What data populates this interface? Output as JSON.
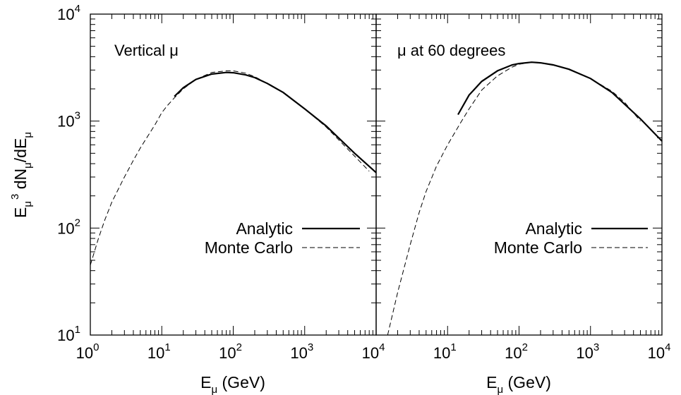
{
  "chart_data": [
    {
      "type": "line",
      "panel_label": "Vertical μ",
      "xlabel": "Eμ (GeV)",
      "ylabel": "Eμ³ dNμ/dEμ",
      "xscale": "log",
      "yscale": "log",
      "xlim": [
        1,
        10000
      ],
      "ylim": [
        10,
        10000
      ],
      "legend_position": "lower-right",
      "series": [
        {
          "name": "Analytic",
          "style": "solid",
          "x": [
            15,
            20,
            30,
            50,
            80,
            100,
            150,
            200,
            300,
            500,
            1000,
            2000,
            5000,
            10000
          ],
          "y": [
            1700,
            2050,
            2450,
            2750,
            2850,
            2830,
            2700,
            2550,
            2250,
            1850,
            1300,
            900,
            500,
            330
          ]
        },
        {
          "name": "Monte Carlo",
          "style": "dashed",
          "x": [
            1,
            1.3,
            1.6,
            2,
            3,
            4,
            5,
            6,
            7,
            8,
            10,
            12,
            15,
            20,
            30,
            50,
            80,
            100,
            150,
            200,
            300,
            500,
            1000,
            2000,
            5000,
            8000
          ],
          "y": [
            45,
            80,
            120,
            175,
            300,
            430,
            560,
            680,
            800,
            920,
            1200,
            1400,
            1650,
            2000,
            2450,
            2850,
            2950,
            2950,
            2800,
            2600,
            2250,
            1850,
            1300,
            880,
            470,
            340
          ]
        }
      ]
    },
    {
      "type": "line",
      "panel_label": "μ at 60 degrees",
      "xlabel": "Eμ (GeV)",
      "xscale": "log",
      "yscale": "log",
      "xlim": [
        1,
        10000
      ],
      "ylim": [
        10,
        10000
      ],
      "legend_position": "lower-right",
      "series": [
        {
          "name": "Analytic",
          "style": "solid",
          "x": [
            14,
            20,
            30,
            50,
            80,
            100,
            150,
            200,
            300,
            500,
            1000,
            2000,
            5000,
            10000
          ],
          "y": [
            1150,
            1750,
            2350,
            2950,
            3350,
            3450,
            3550,
            3500,
            3350,
            3050,
            2500,
            1850,
            1050,
            650
          ]
        },
        {
          "name": "Monte Carlo",
          "style": "dashed",
          "x": [
            1.45,
            2,
            3,
            4,
            5,
            7,
            10,
            15,
            20,
            30,
            50,
            80,
            100,
            150,
            200,
            300,
            500,
            1000,
            2000,
            3000,
            5000
          ],
          "y": [
            10,
            25,
            70,
            140,
            220,
            380,
            600,
            950,
            1300,
            1950,
            2650,
            3200,
            3400,
            3550,
            3500,
            3350,
            3050,
            2500,
            1900,
            1500,
            1000
          ]
        }
      ]
    }
  ],
  "axes": {
    "xticks": [
      {
        "base": "10",
        "exp": "0"
      },
      {
        "base": "10",
        "exp": "1"
      },
      {
        "base": "10",
        "exp": "2"
      },
      {
        "base": "10",
        "exp": "3"
      },
      {
        "base": "10",
        "exp": "4"
      }
    ],
    "yticks": [
      {
        "base": "10",
        "exp": "1"
      },
      {
        "base": "10",
        "exp": "2"
      },
      {
        "base": "10",
        "exp": "3"
      },
      {
        "base": "10",
        "exp": "4"
      }
    ],
    "xlabel_main": "E",
    "xlabel_sub": "μ",
    "xlabel_unit": " (GeV)",
    "ylabel_e": "E",
    "ylabel_sub1": "μ",
    "ylabel_sup": "3",
    "ylabel_mid": " dN",
    "ylabel_sub2": "μ",
    "ylabel_div": "/dE",
    "ylabel_sub3": "μ"
  }
}
